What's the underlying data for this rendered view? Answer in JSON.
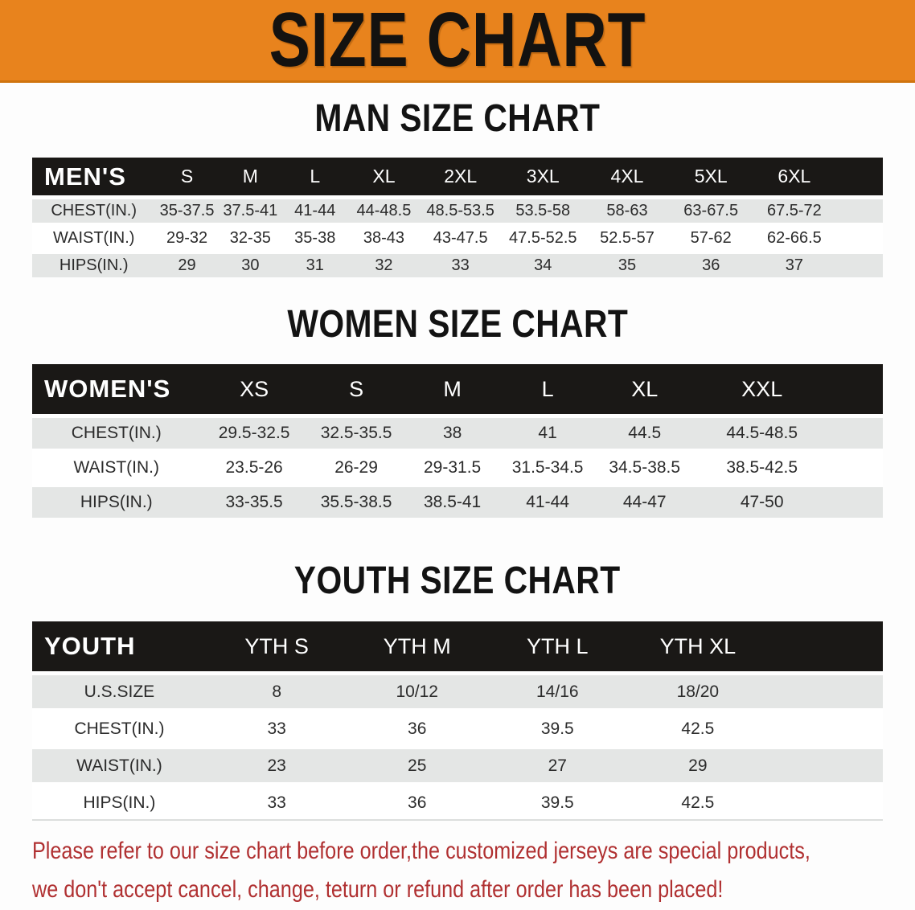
{
  "banner": {
    "title": "SIZE CHART",
    "bg_color": "#E8831D"
  },
  "sections": [
    {
      "id": "men",
      "heading": "MAN SIZE CHART",
      "table": {
        "header": [
          "MEN'S",
          "S",
          "M",
          "L",
          "XL",
          "2XL",
          "3XL",
          "4XL",
          "5XL",
          "6XL"
        ],
        "rows": [
          [
            "CHEST(IN.)",
            "35-37.5",
            "37.5-41",
            "41-44",
            "44-48.5",
            "48.5-53.5",
            "53.5-58",
            "58-63",
            "63-67.5",
            "67.5-72"
          ],
          [
            "WAIST(IN.)",
            "29-32",
            "32-35",
            "35-38",
            "38-43",
            "43-47.5",
            "47.5-52.5",
            "52.5-57",
            "57-62",
            "62-66.5"
          ],
          [
            "HIPS(IN.)",
            "29",
            "30",
            "31",
            "32",
            "33",
            "34",
            "35",
            "36",
            "37"
          ]
        ]
      }
    },
    {
      "id": "women",
      "heading": "WOMEN SIZE CHART",
      "table": {
        "header": [
          "WOMEN'S",
          "XS",
          "S",
          "M",
          "L",
          "XL",
          "XXL"
        ],
        "rows": [
          [
            "CHEST(IN.)",
            "29.5-32.5",
            "32.5-35.5",
            "38",
            "41",
            "44.5",
            "44.5-48.5"
          ],
          [
            "WAIST(IN.)",
            "23.5-26",
            "26-29",
            "29-31.5",
            "31.5-34.5",
            "34.5-38.5",
            "38.5-42.5"
          ],
          [
            "HIPS(IN.)",
            "33-35.5",
            "35.5-38.5",
            "38.5-41",
            "41-44",
            "44-47",
            "47-50"
          ]
        ]
      }
    },
    {
      "id": "youth",
      "heading": "YOUTH SIZE CHART",
      "table": {
        "header": [
          "YOUTH",
          "YTH S",
          "YTH M",
          "YTH L",
          "YTH XL"
        ],
        "rows": [
          [
            "U.S.SIZE",
            "8",
            "10/12",
            "14/16",
            "18/20"
          ],
          [
            "CHEST(IN.)",
            "33",
            "36",
            "39.5",
            "42.5"
          ],
          [
            "WAIST(IN.)",
            "23",
            "25",
            "27",
            "29"
          ],
          [
            "HIPS(IN.)",
            "33",
            "36",
            "39.5",
            "42.5"
          ]
        ]
      }
    }
  ],
  "disclaimer": {
    "lines": [
      "Please refer to our size chart before order,the customized jerseys are special products,",
      "we don't accept cancel, change, teturn or refund after order has been placed!"
    ],
    "color": "#B03031"
  },
  "colors": {
    "header_bg": "#1A1816",
    "row_alt_bg": "#E4E6E5",
    "accent_orange": "#E8831D"
  }
}
